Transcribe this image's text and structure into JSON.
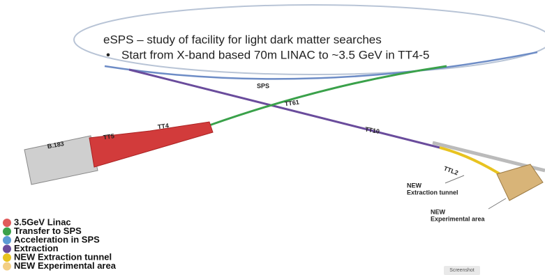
{
  "header": {
    "title": "eSPS – study of facility for light dark matter searches",
    "bullet": "Start from X-band based 70m LINAC to ~3.5 GeV in TT4-5"
  },
  "labels": [
    {
      "lines": [
        "SPS"
      ]
    },
    {
      "lines": [
        "TT61"
      ]
    },
    {
      "lines": [
        "TT10"
      ]
    },
    {
      "lines": [
        "TT4"
      ]
    },
    {
      "lines": [
        "TT5"
      ]
    },
    {
      "lines": [
        "B.183"
      ]
    },
    {
      "lines": [
        "TTL2"
      ]
    },
    {
      "lines": [
        "NEW",
        "Extraction tunnel"
      ]
    },
    {
      "lines": [
        "NEW",
        "Experimental area"
      ]
    }
  ],
  "legend": [
    {
      "label": "3.5GeV Linac",
      "color": "#e05a5a"
    },
    {
      "label": "Transfer to SPS",
      "color": "#3aa14a"
    },
    {
      "label": "Acceleration in SPS",
      "color": "#5b9bd5"
    },
    {
      "label": "Extraction",
      "color": "#6a4c9c"
    },
    {
      "label": "NEW Extraction tunnel",
      "color": "#e8c320"
    },
    {
      "label": "NEW Experimental area",
      "color": "#f3cf85"
    }
  ],
  "button": "Screenshot"
}
